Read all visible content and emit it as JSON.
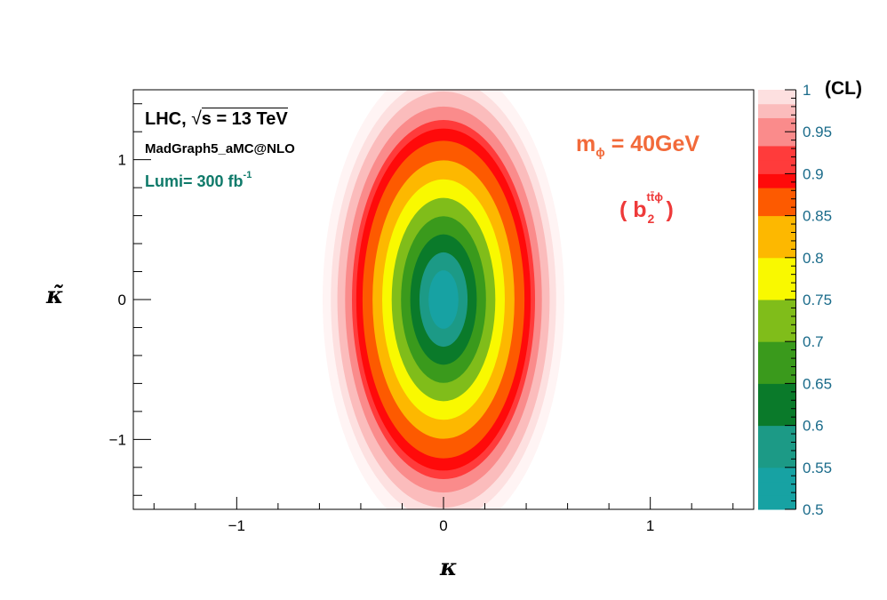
{
  "chart_data": {
    "type": "heatmap",
    "title": "",
    "xlabel": "κ",
    "ylabel": "κ̃",
    "xlim": [
      -1.5,
      1.5
    ],
    "ylim": [
      -1.5,
      1.5
    ],
    "xticks": [
      -1,
      0,
      1
    ],
    "yticks": [
      -1,
      0,
      1
    ],
    "xtick_labels": [
      "−1",
      "0",
      "1"
    ],
    "ytick_labels": [
      "−1",
      "0",
      "1"
    ],
    "contour_model": {
      "center": [
        0,
        0
      ],
      "semi_axis_kappa_at_cl_0_95": 0.5,
      "semi_axis_kappa_tilde_at_cl_0_95": 1.45
    },
    "colorbar": {
      "title": "(CL)",
      "range": [
        0.5,
        1.0
      ],
      "ticks": [
        0.5,
        0.55,
        0.6,
        0.65,
        0.7,
        0.75,
        0.8,
        0.85,
        0.9,
        0.95,
        1
      ],
      "tick_labels": [
        "0.5",
        "0.55",
        "0.6",
        "0.65",
        "0.7",
        "0.75",
        "0.8",
        "0.85",
        "0.9",
        "0.95",
        "1"
      ],
      "levels": [
        {
          "cl": 0.5,
          "color": "#17a2a3"
        },
        {
          "cl": 0.55,
          "color": "#1c9a86"
        },
        {
          "cl": 0.6,
          "color": "#0a7a2a"
        },
        {
          "cl": 0.65,
          "color": "#3a9a1c"
        },
        {
          "cl": 0.7,
          "color": "#80bd1a"
        },
        {
          "cl": 0.75,
          "color": "#f9f900"
        },
        {
          "cl": 0.8,
          "color": "#fdb800"
        },
        {
          "cl": 0.85,
          "color": "#fd5a00"
        },
        {
          "cl": 0.88,
          "color": "#ff0a0a"
        },
        {
          "cl": 0.9,
          "color": "#ff3b3b"
        },
        {
          "cl": 0.93,
          "color": "#fa8b8b"
        },
        {
          "cl": 0.96,
          "color": "#fbbcbc"
        },
        {
          "cl": 0.98,
          "color": "#fde0e0"
        },
        {
          "cl": 1.0,
          "color": "#fff4f4"
        }
      ]
    },
    "annotations": {
      "experiment": "LHC,",
      "sqrt_label": "s = 13 TeV",
      "generator": "MadGraph5_aMC@NLO",
      "lumi_text": "Lumi= 300 fb",
      "lumi_exp": "-1",
      "mass_base": "m",
      "mass_sub": "ϕ",
      "mass_value": "= 40GeV",
      "coef_open": "( b",
      "coef_sup": "tt̄ϕ",
      "coef_sub": "2",
      "coef_close": ")"
    },
    "colors": {
      "frame": "#000000",
      "colorbar_text": "#1a6b8a",
      "lumi_text": "#0f7a6a",
      "mass_text": "#f26a3a",
      "coef_text": "#ee3a3a"
    }
  }
}
